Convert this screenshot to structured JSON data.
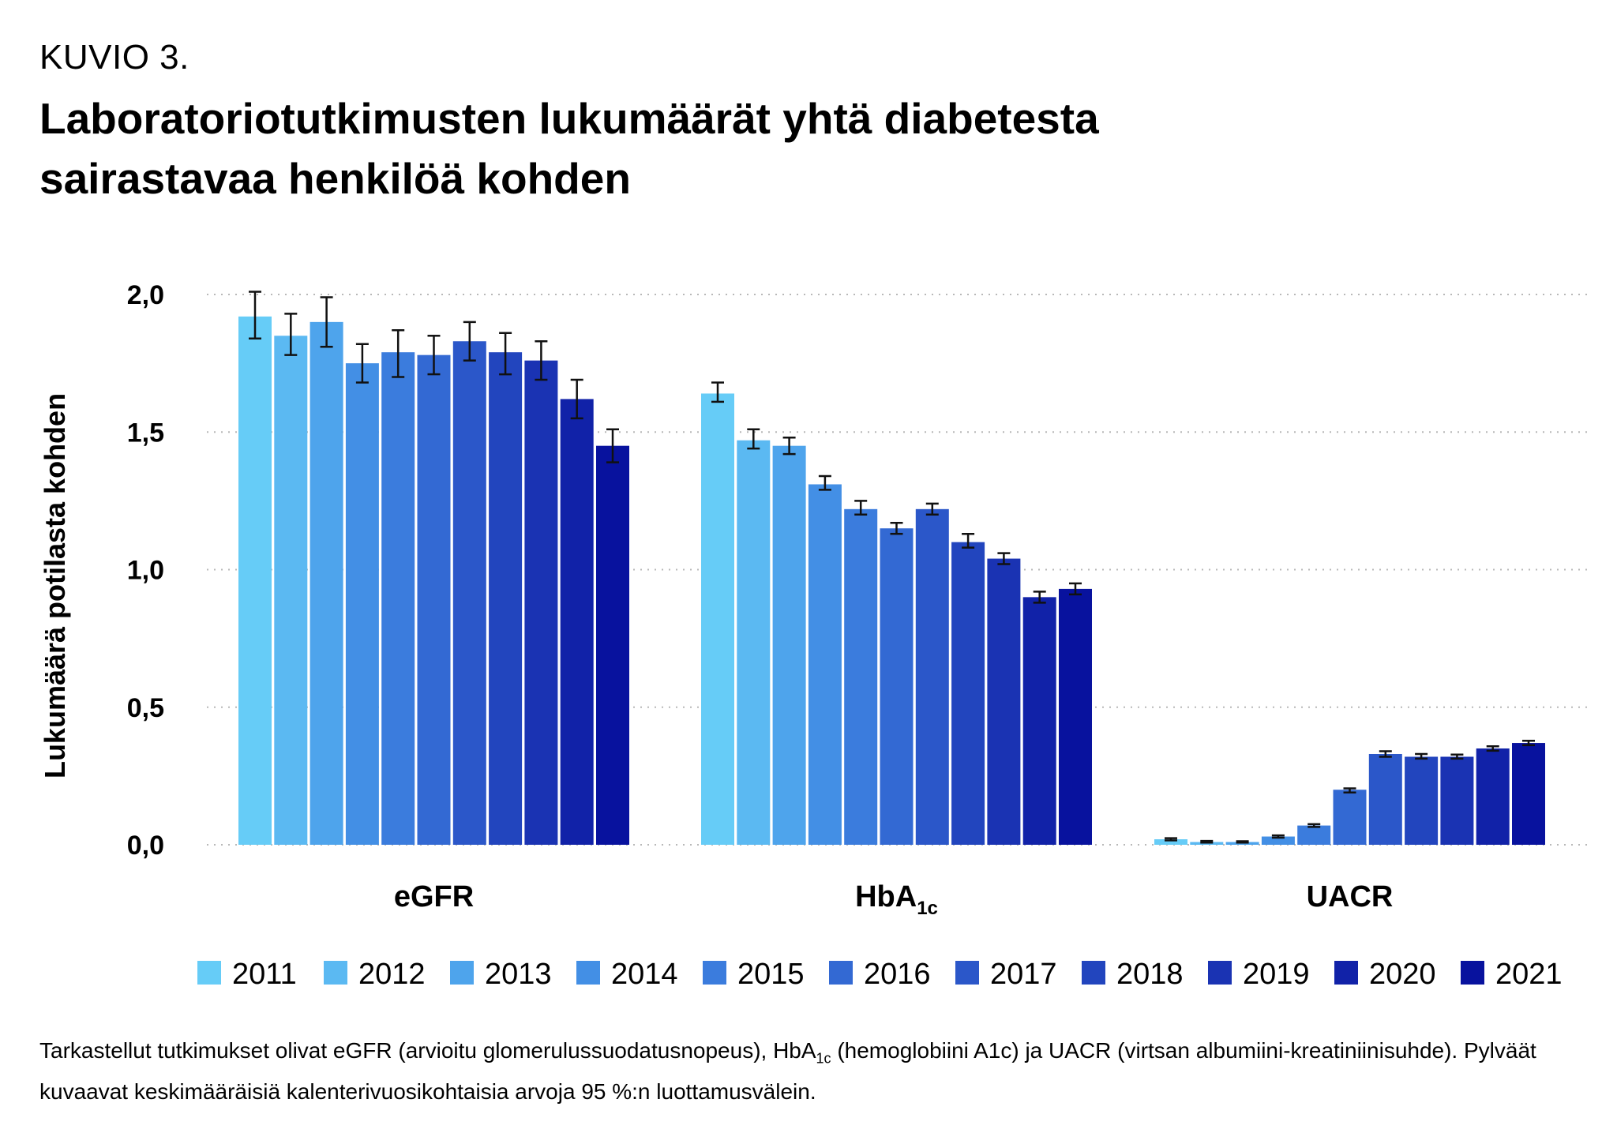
{
  "header": {
    "kuvio": "KUVIO 3.",
    "title": "Laboratoriotutkimusten lukumäärät yhtä diabetesta sairastavaa henkilöä kohden"
  },
  "note": {
    "part1": "Tarkastellut tutkimukset olivat eGFR (arvioitu glomerulussuodatusnopeus), HbA",
    "sub": "1c",
    "part2": " (hemoglobiini A1c) ja UACR (virtsan albumiini-kreatiniinisuhde). Pylväät kuvaavat keskimääräisiä kalenterivuosikohtaisia arvoja 95 %:n luottamusvälein."
  },
  "chart_data": {
    "type": "bar",
    "ylabel": "Lukumäärä potilasta kohden",
    "ylim": [
      0,
      2.0
    ],
    "yticks": [
      "0,0",
      "0,5",
      "1,0",
      "1,5",
      "2,0"
    ],
    "ytick_values": [
      0,
      0.5,
      1.0,
      1.5,
      2.0
    ],
    "grid": "horizontal-dotted",
    "legend_placement": "bottom",
    "categories": [
      {
        "label": "eGFR",
        "sub": ""
      },
      {
        "label": "HbA",
        "sub": "1c"
      },
      {
        "label": "UACR",
        "sub": ""
      }
    ],
    "series": [
      {
        "name": "2011",
        "color": "#66ccf7",
        "values": [
          1.92,
          1.64,
          0.02
        ],
        "ci": [
          [
            1.84,
            2.01
          ],
          [
            1.61,
            1.68
          ],
          [
            0.016,
            0.024
          ]
        ]
      },
      {
        "name": "2012",
        "color": "#5bb9f2",
        "values": [
          1.85,
          1.47,
          0.01
        ],
        "ci": [
          [
            1.78,
            1.93
          ],
          [
            1.44,
            1.51
          ],
          [
            0.008,
            0.014
          ]
        ]
      },
      {
        "name": "2013",
        "color": "#4ea4ec",
        "values": [
          1.9,
          1.45,
          0.01
        ],
        "ci": [
          [
            1.81,
            1.99
          ],
          [
            1.42,
            1.48
          ],
          [
            0.008,
            0.013
          ]
        ]
      },
      {
        "name": "2014",
        "color": "#438fe5",
        "values": [
          1.75,
          1.31,
          0.03
        ],
        "ci": [
          [
            1.68,
            1.82
          ],
          [
            1.29,
            1.34
          ],
          [
            0.026,
            0.034
          ]
        ]
      },
      {
        "name": "2015",
        "color": "#3b7cdd",
        "values": [
          1.79,
          1.22,
          0.07
        ],
        "ci": [
          [
            1.7,
            1.87
          ],
          [
            1.2,
            1.25
          ],
          [
            0.065,
            0.075
          ]
        ]
      },
      {
        "name": "2016",
        "color": "#3369d3",
        "values": [
          1.78,
          1.15,
          0.2
        ],
        "ci": [
          [
            1.71,
            1.85
          ],
          [
            1.13,
            1.17
          ],
          [
            0.19,
            0.205
          ]
        ]
      },
      {
        "name": "2017",
        "color": "#2b57c9",
        "values": [
          1.83,
          1.22,
          0.33
        ],
        "ci": [
          [
            1.76,
            1.9
          ],
          [
            1.2,
            1.24
          ],
          [
            0.32,
            0.34
          ]
        ]
      },
      {
        "name": "2018",
        "color": "#2245be",
        "values": [
          1.79,
          1.1,
          0.32
        ],
        "ci": [
          [
            1.71,
            1.86
          ],
          [
            1.08,
            1.13
          ],
          [
            0.313,
            0.33
          ]
        ]
      },
      {
        "name": "2019",
        "color": "#1a33b3",
        "values": [
          1.76,
          1.04,
          0.32
        ],
        "ci": [
          [
            1.69,
            1.83
          ],
          [
            1.02,
            1.06
          ],
          [
            0.313,
            0.328
          ]
        ]
      },
      {
        "name": "2020",
        "color": "#1122a8",
        "values": [
          1.62,
          0.9,
          0.35
        ],
        "ci": [
          [
            1.55,
            1.69
          ],
          [
            0.88,
            0.92
          ],
          [
            0.342,
            0.358
          ]
        ]
      },
      {
        "name": "2021",
        "color": "#08129e",
        "values": [
          1.45,
          0.93,
          0.37
        ],
        "ci": [
          [
            1.39,
            1.51
          ],
          [
            0.91,
            0.95
          ],
          [
            0.362,
            0.378
          ]
        ]
      }
    ]
  }
}
